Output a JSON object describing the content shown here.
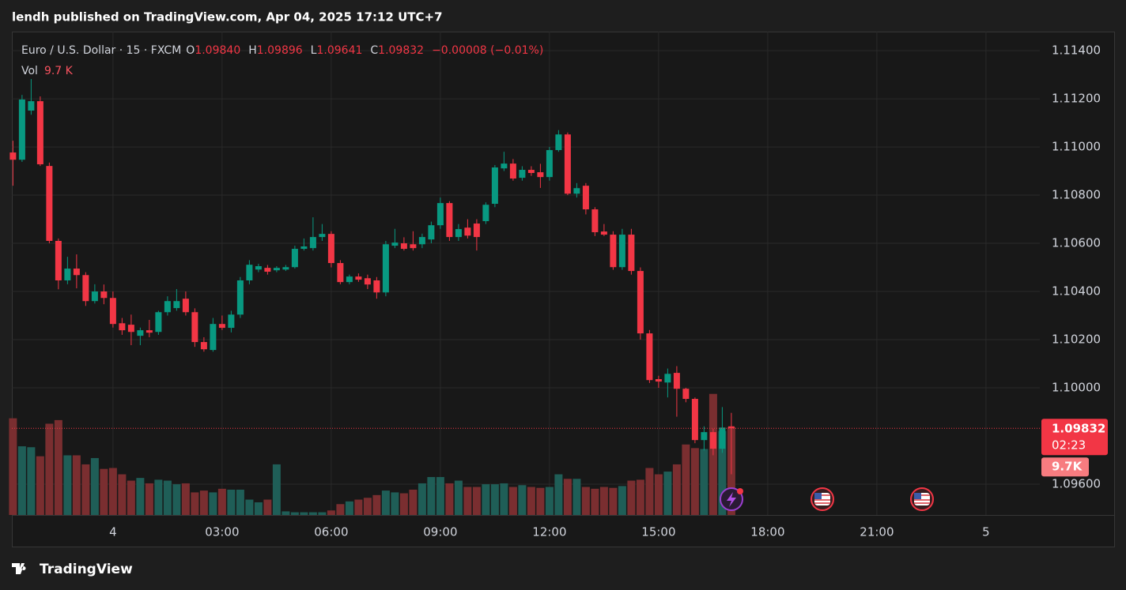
{
  "header": "lendh published on TradingView.com, Apr 04, 2025 17:12 UTC+7",
  "footer": "TradingView",
  "chart_data": {
    "type": "candlestick",
    "legend": {
      "symbol": "Euro / U.S. Dollar · 15 · FXCM",
      "open_label": "O",
      "open": "1.09840",
      "high_label": "H",
      "high": "1.09896",
      "low_label": "L",
      "low": "1.09641",
      "close_label": "C",
      "close": "1.09832",
      "change": "−0.00008 (−0.01%)",
      "volume_label": "Vol",
      "volume": "9.7 K"
    },
    "last_price_label": "1.09832",
    "countdown": "02:23",
    "last_volume_label": "9.7K",
    "up_color": "#089981",
    "down_color": "#f23645",
    "up_volume_color": "#1f5e57",
    "down_volume_color": "#7a2e30",
    "grid": true,
    "x": [
      -2.75,
      -2.5,
      -2.25,
      -2,
      -1.75,
      -1.5,
      -1.25,
      -1,
      -0.75,
      -0.5,
      -0.25,
      0,
      0.25,
      0.5,
      0.75,
      1,
      1.25,
      1.5,
      1.75,
      2,
      2.25,
      2.5,
      2.75,
      3,
      3.25,
      3.5,
      3.75,
      4,
      4.25,
      4.5,
      4.75,
      5,
      5.25,
      5.5,
      5.75,
      6,
      6.25,
      6.5,
      6.75,
      7,
      7.25,
      7.5,
      7.75,
      8,
      8.25,
      8.5,
      8.75,
      9,
      9.25,
      9.5,
      9.75,
      10,
      10.25,
      10.5,
      10.75,
      11,
      11.25,
      11.5,
      11.75,
      12,
      12.25,
      12.5,
      12.75,
      13,
      13.25,
      13.5,
      13.75,
      14,
      14.25,
      14.5,
      14.75,
      15,
      15.25,
      15.5,
      15.75,
      16,
      16.25,
      16.5,
      16.75,
      17
    ],
    "open": [
      1.10977,
      1.10947,
      1.11151,
      1.1119,
      1.10921,
      1.1061,
      1.10446,
      1.10495,
      1.10468,
      1.1036,
      1.104,
      1.10373,
      1.10268,
      1.10262,
      1.10216,
      1.10239,
      1.10232,
      1.10314,
      1.10331,
      1.1037,
      1.10314,
      1.1019,
      1.10157,
      1.10265,
      1.10249,
      1.10304,
      1.10446,
      1.10491,
      1.10498,
      1.10488,
      1.10491,
      1.10501,
      1.10577,
      1.1058,
      1.10626,
      1.10639,
      1.10518,
      1.10439,
      1.10462,
      1.10455,
      1.10446,
      1.10396,
      1.1059,
      1.106,
      1.10596,
      1.10596,
      1.10616,
      1.10675,
      1.10767,
      1.10626,
      1.10665,
      1.10682,
      1.10692,
      1.10764,
      1.10911,
      1.10931,
      1.10872,
      1.10905,
      1.10895,
      1.10875,
      1.10987,
      1.11052,
      1.10806,
      1.10839,
      1.10741,
      1.10649,
      1.10636,
      1.10501,
      1.10636,
      1.10485,
      1.10226,
      1.10036,
      1.10022,
      1.10062,
      1.09996,
      1.09954,
      1.09783,
      1.09816,
      1.09747,
      1.0984
    ],
    "high": [
      1.11026,
      1.11216,
      1.11282,
      1.1121,
      1.10935,
      1.1062,
      1.10544,
      1.10554,
      1.1048,
      1.1043,
      1.10429,
      1.104,
      1.1029,
      1.10304,
      1.1025,
      1.10282,
      1.1032,
      1.1038,
      1.1041,
      1.104,
      1.1033,
      1.1021,
      1.1029,
      1.103,
      1.1032,
      1.1046,
      1.1053,
      1.10515,
      1.1051,
      1.10505,
      1.1051,
      1.1059,
      1.1062,
      1.10708,
      1.1068,
      1.1065,
      1.1053,
      1.1047,
      1.10475,
      1.1047,
      1.1046,
      1.1061,
      1.1066,
      1.10625,
      1.1065,
      1.1064,
      1.1069,
      1.1079,
      1.10775,
      1.1068,
      1.107,
      1.107,
      1.1077,
      1.10925,
      1.1098,
      1.1095,
      1.1092,
      1.1092,
      1.1093,
      1.11,
      1.1107,
      1.1106,
      1.1085,
      1.1085,
      1.1075,
      1.1068,
      1.1065,
      1.1066,
      1.1066,
      1.105,
      1.1024,
      1.1005,
      1.1008,
      1.1009,
      1.1,
      1.0996,
      1.0984,
      1.0983,
      1.0992,
      1.09896
    ],
    "low": [
      1.10839,
      1.10938,
      1.11134,
      1.10921,
      1.106,
      1.10409,
      1.1043,
      1.10413,
      1.1034,
      1.1035,
      1.10347,
      1.1025,
      1.1022,
      1.10177,
      1.10177,
      1.1021,
      1.1022,
      1.103,
      1.1032,
      1.103,
      1.1017,
      1.1015,
      1.1015,
      1.1024,
      1.1023,
      1.1029,
      1.1043,
      1.1048,
      1.1047,
      1.1048,
      1.10485,
      1.10495,
      1.1057,
      1.1057,
      1.1061,
      1.105,
      1.1043,
      1.1043,
      1.1044,
      1.1041,
      1.1037,
      1.1038,
      1.1058,
      1.1057,
      1.1057,
      1.1058,
      1.106,
      1.1066,
      1.1061,
      1.1061,
      1.1062,
      1.1057,
      1.1068,
      1.1075,
      1.109,
      1.1086,
      1.1086,
      1.1088,
      1.1083,
      1.1086,
      1.1098,
      1.108,
      1.1079,
      1.1072,
      1.1063,
      1.1063,
      1.1049,
      1.1049,
      1.1047,
      1.102,
      1.1002,
      1.1,
      1.0996,
      1.0988,
      1.0994,
      1.0977,
      1.0974,
      1.0972,
      1.0973,
      1.09641
    ],
    "close": [
      1.10947,
      1.11197,
      1.1119,
      1.10928,
      1.1061,
      1.10446,
      1.10495,
      1.10468,
      1.1036,
      1.104,
      1.10373,
      1.10265,
      1.10239,
      1.10232,
      1.10239,
      1.10229,
      1.10314,
      1.1036,
      1.1036,
      1.10314,
      1.1019,
      1.1016,
      1.10265,
      1.10249,
      1.10304,
      1.10446,
      1.10511,
      1.10505,
      1.10482,
      1.10498,
      1.10501,
      1.10577,
      1.10587,
      1.10626,
      1.10639,
      1.10518,
      1.10439,
      1.10462,
      1.10449,
      1.10429,
      1.10396,
      1.10596,
      1.10603,
      1.10577,
      1.1058,
      1.10626,
      1.10675,
      1.10767,
      1.10626,
      1.10659,
      1.10632,
      1.10626,
      1.1076,
      1.10915,
      1.10931,
      1.10869,
      1.10905,
      1.10892,
      1.10875,
      1.10987,
      1.11052,
      1.10806,
      1.10829,
      1.10741,
      1.10646,
      1.10636,
      1.10501,
      1.10636,
      1.10485,
      1.10226,
      1.10032,
      1.10026,
      1.10058,
      1.09996,
      1.09954,
      1.09783,
      1.09816,
      1.09747,
      1.09835,
      1.09832
    ],
    "volume": [
      10700,
      7600,
      7500,
      6500,
      10100,
      10500,
      6600,
      6600,
      5600,
      6300,
      5100,
      5200,
      4500,
      3800,
      4100,
      3500,
      3900,
      3800,
      3400,
      3500,
      2500,
      2700,
      2500,
      2900,
      2800,
      2800,
      1700,
      1400,
      1700,
      5600,
      400,
      300,
      300,
      300,
      300,
      500,
      1200,
      1500,
      1700,
      1900,
      2200,
      2700,
      2500,
      2400,
      2800,
      3500,
      4200,
      4200,
      3500,
      3800,
      3100,
      3100,
      3400,
      3400,
      3500,
      3100,
      3300,
      3100,
      3000,
      3100,
      4500,
      4000,
      4000,
      3100,
      2900,
      3100,
      3000,
      3200,
      3800,
      3900,
      5200,
      4500,
      4800,
      5600,
      7800,
      7400,
      7300,
      13400,
      9300,
      9700
    ],
    "xlim": [
      -2.78,
      25.48
    ],
    "xticks": [
      {
        "value": 0,
        "label": "4"
      },
      {
        "value": 3,
        "label": "03:00"
      },
      {
        "value": 6,
        "label": "06:00"
      },
      {
        "value": 9,
        "label": "09:00"
      },
      {
        "value": 12,
        "label": "12:00"
      },
      {
        "value": 15,
        "label": "15:00"
      },
      {
        "value": 18,
        "label": "18:00"
      },
      {
        "value": 21,
        "label": "21:00"
      },
      {
        "value": 24,
        "label": "5"
      }
    ],
    "ylim": [
      1.09472,
      1.11479
    ],
    "yticks": [
      {
        "value": 1.114,
        "label": "1.11400"
      },
      {
        "value": 1.112,
        "label": "1.11200"
      },
      {
        "value": 1.11,
        "label": "1.11000"
      },
      {
        "value": 1.108,
        "label": "1.10800"
      },
      {
        "value": 1.106,
        "label": "1.10600"
      },
      {
        "value": 1.104,
        "label": "1.10400"
      },
      {
        "value": 1.102,
        "label": "1.10200"
      },
      {
        "value": 1.1,
        "label": "1.10000"
      },
      {
        "value": 1.096,
        "label": "1.09600"
      }
    ],
    "volume_lim": [
      0,
      53500
    ]
  }
}
